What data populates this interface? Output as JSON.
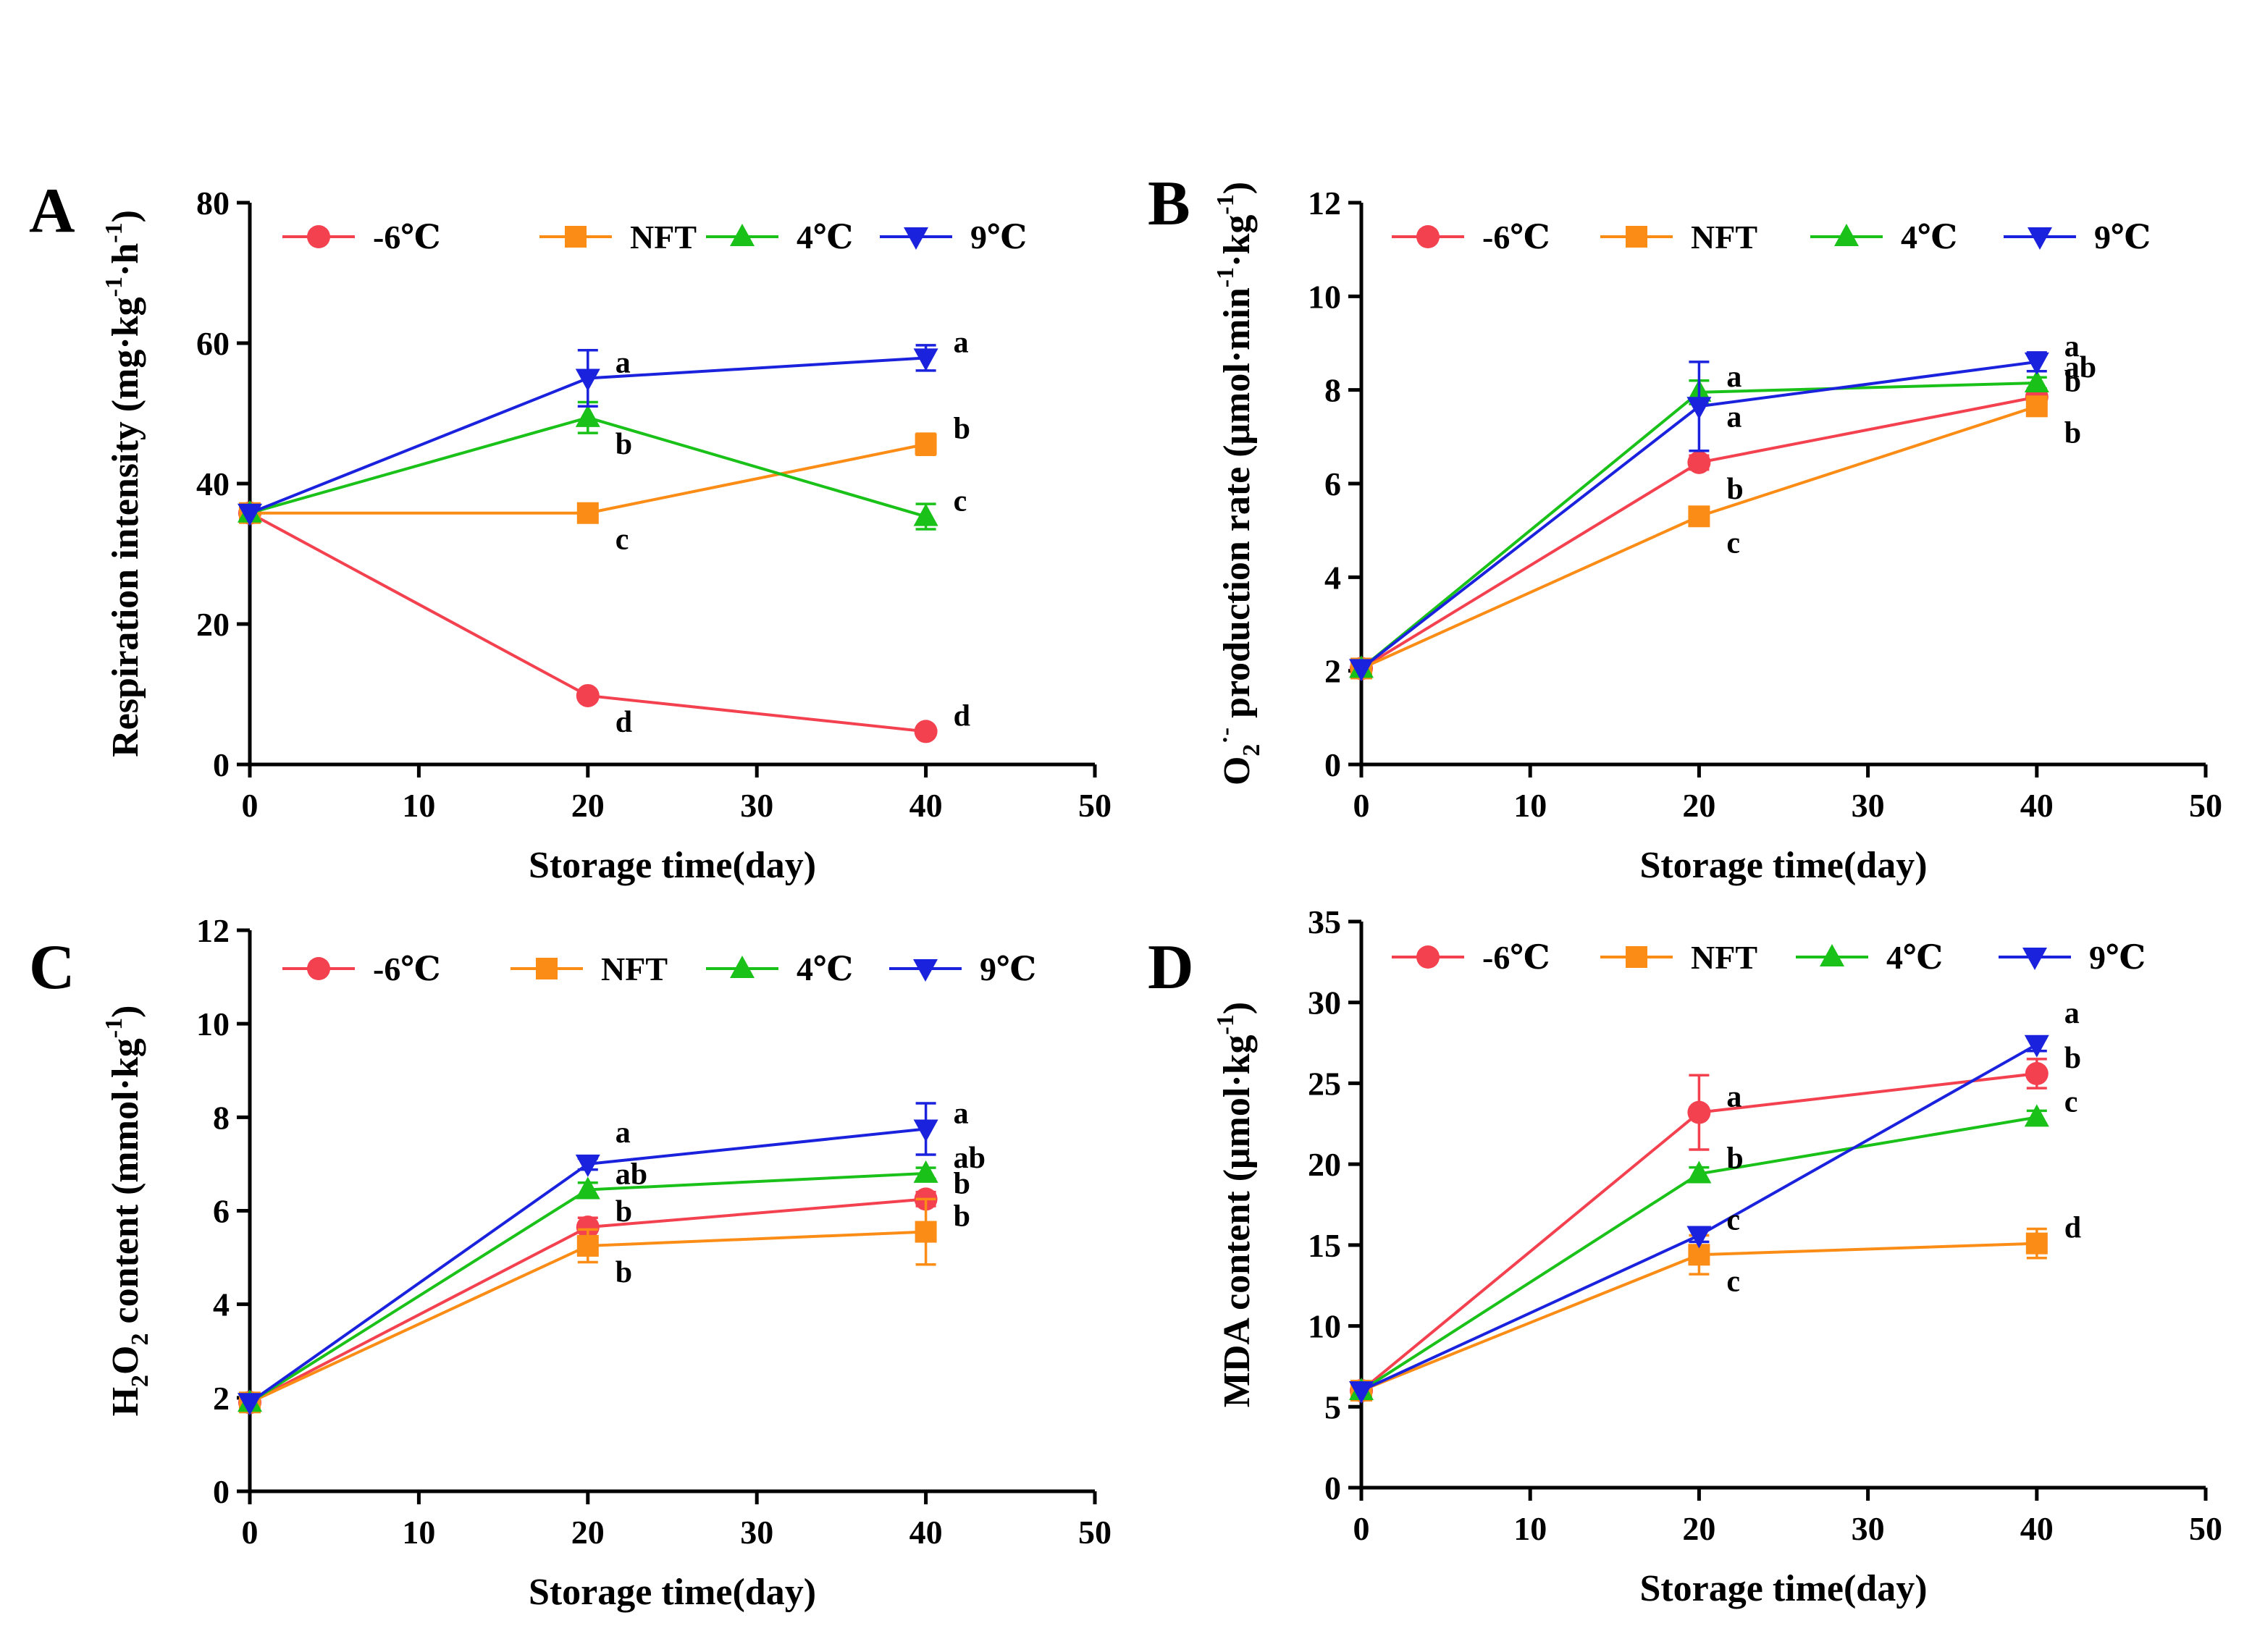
{
  "series_meta": [
    {
      "name": "-6℃",
      "color": "#f4414f",
      "marker": "circle"
    },
    {
      "name": "NFT",
      "color": "#fb8c16",
      "marker": "square"
    },
    {
      "name": "4℃",
      "color": "#19c119",
      "marker": "triangle-up"
    },
    {
      "name": "9℃",
      "color": "#1a22dd",
      "marker": "triangle-down"
    }
  ],
  "chart_data": [
    {
      "type": "line",
      "panel": "A",
      "xlabel": "Storage time(day)",
      "ylabel": "Respiration intensity (mg·kg⁻¹·h⁻¹)",
      "ylabel_parts": {
        "main": "Respiration intensity (mg·kg",
        "sup1": "-1",
        "mid": "·h",
        "sup2": "-1",
        "end": ")"
      },
      "xlim": [
        0,
        50
      ],
      "ylim": [
        0,
        80
      ],
      "xticks": [
        0,
        10,
        20,
        30,
        40,
        50
      ],
      "yticks": [
        0,
        20,
        40,
        60,
        80
      ],
      "x": [
        0,
        20,
        40
      ],
      "series": [
        {
          "name": "-6℃",
          "values": [
            35.8,
            9.8,
            4.7
          ],
          "errors": [
            0,
            0.5,
            0.5
          ],
          "labels": [
            "",
            "d",
            "d"
          ],
          "label_pos": [
            "",
            "below",
            "right"
          ]
        },
        {
          "name": "NFT",
          "values": [
            35.8,
            35.8,
            45.6
          ],
          "errors": [
            0,
            0.6,
            1.5
          ],
          "labels": [
            "",
            "c",
            "b"
          ],
          "label_pos": [
            "",
            "below",
            "right"
          ]
        },
        {
          "name": "4℃",
          "values": [
            35.8,
            49.4,
            35.3
          ],
          "errors": [
            0,
            2.2,
            1.8
          ],
          "labels": [
            "",
            "b",
            "c"
          ],
          "label_pos": [
            "",
            "below",
            "right"
          ]
        },
        {
          "name": "9℃",
          "values": [
            35.8,
            55.0,
            57.9
          ],
          "errors": [
            0,
            4.0,
            1.8
          ],
          "labels": [
            "",
            "a",
            "a"
          ],
          "label_pos": [
            "",
            "right",
            "right"
          ]
        }
      ]
    },
    {
      "type": "line",
      "panel": "B",
      "xlabel": "Storage time(day)",
      "ylabel": "O₂⁻ production rate (μmol·min⁻¹·kg⁻¹)",
      "ylabel_parts": {
        "main": "O",
        "sub": "2",
        "sup0": "·-",
        "mid": " production rate (μmol·min",
        "sup1": "-1",
        "mid2": "·kg",
        "sup2": "-1",
        "end": ")"
      },
      "xlim": [
        0,
        50
      ],
      "ylim": [
        0,
        12
      ],
      "xticks": [
        0,
        10,
        20,
        30,
        40,
        50
      ],
      "yticks": [
        0,
        2,
        4,
        6,
        8,
        10,
        12
      ],
      "x": [
        0,
        20,
        40
      ],
      "series": [
        {
          "name": "-6℃",
          "values": [
            2.05,
            6.45,
            7.85
          ],
          "errors": [
            0,
            0.15,
            0.15
          ],
          "labels": [
            "",
            "b",
            "b"
          ],
          "label_pos": [
            "",
            "below",
            "right"
          ]
        },
        {
          "name": "NFT",
          "values": [
            2.05,
            5.3,
            7.65
          ],
          "errors": [
            0,
            0.12,
            0.12
          ],
          "labels": [
            "",
            "c",
            "b"
          ],
          "label_pos": [
            "",
            "below",
            "right2"
          ]
        },
        {
          "name": "4℃",
          "values": [
            2.05,
            7.95,
            8.15
          ],
          "errors": [
            0,
            0.25,
            0.12
          ],
          "labels": [
            "",
            "a",
            "ab"
          ],
          "label_pos": [
            "",
            "right",
            "right"
          ]
        },
        {
          "name": "9℃",
          "values": [
            2.05,
            7.65,
            8.6
          ],
          "errors": [
            0,
            0.95,
            0.2
          ],
          "labels": [
            "",
            "a",
            "a"
          ],
          "label_pos": [
            "",
            "belowright",
            "right"
          ]
        }
      ]
    },
    {
      "type": "line",
      "panel": "C",
      "xlabel": "Storage time(day)",
      "ylabel": "H₂O₂ content (mmol·kg⁻¹)",
      "ylabel_parts": {
        "main": "H",
        "sub1": "2",
        "mid": "O",
        "sub2": "2",
        "mid2": "  content (mmol·kg",
        "sup1": "-1",
        "end": ")"
      },
      "xlim": [
        0,
        50
      ],
      "ylim": [
        0,
        12
      ],
      "xticks": [
        0,
        10,
        20,
        30,
        40,
        50
      ],
      "yticks": [
        0,
        2,
        4,
        6,
        8,
        10,
        12
      ],
      "x": [
        0,
        20,
        40
      ],
      "series": [
        {
          "name": "-6℃",
          "values": [
            1.9,
            5.65,
            6.25
          ],
          "errors": [
            0,
            0.2,
            0.15
          ],
          "labels": [
            "",
            "b",
            "b"
          ],
          "label_pos": [
            "",
            "right",
            "right"
          ]
        },
        {
          "name": "NFT",
          "values": [
            1.9,
            5.25,
            5.55
          ],
          "errors": [
            0,
            0.35,
            0.7
          ],
          "labels": [
            "",
            "b",
            "b"
          ],
          "label_pos": [
            "",
            "below",
            "right"
          ]
        },
        {
          "name": "4℃",
          "values": [
            1.9,
            6.45,
            6.8
          ],
          "errors": [
            0,
            0.15,
            0.12
          ],
          "labels": [
            "",
            "ab",
            "ab"
          ],
          "label_pos": [
            "",
            "right",
            "right"
          ]
        },
        {
          "name": "9℃",
          "values": [
            1.9,
            7.0,
            7.75
          ],
          "errors": [
            0,
            0.12,
            0.55
          ],
          "labels": [
            "",
            "a",
            "a"
          ],
          "label_pos": [
            "",
            "above",
            "right"
          ]
        }
      ]
    },
    {
      "type": "line",
      "panel": "D",
      "xlabel": "Storage time(day)",
      "ylabel": "MDA content (μmol·kg⁻¹)",
      "ylabel_parts": {
        "main": "MDA content (μmol·kg",
        "sup1": "-1",
        "end": ")"
      },
      "xlim": [
        0,
        50
      ],
      "ylim": [
        0,
        35
      ],
      "xticks": [
        0,
        10,
        20,
        30,
        40,
        50
      ],
      "yticks": [
        0,
        5,
        10,
        15,
        20,
        25,
        30,
        35
      ],
      "x": [
        0,
        20,
        40
      ],
      "series": [
        {
          "name": "-6℃",
          "values": [
            6.0,
            23.2,
            25.6
          ],
          "errors": [
            0,
            2.3,
            0.9
          ],
          "labels": [
            "",
            "a",
            "b"
          ],
          "label_pos": [
            "",
            "right",
            "right"
          ]
        },
        {
          "name": "NFT",
          "values": [
            6.0,
            14.4,
            15.1
          ],
          "errors": [
            0,
            1.2,
            0.9
          ],
          "labels": [
            "",
            "c",
            "d"
          ],
          "label_pos": [
            "",
            "below",
            "right"
          ]
        },
        {
          "name": "4℃",
          "values": [
            6.0,
            19.4,
            22.9
          ],
          "errors": [
            0,
            0.4,
            0.4
          ],
          "labels": [
            "",
            "b",
            "c"
          ],
          "label_pos": [
            "",
            "right",
            "right"
          ]
        },
        {
          "name": "9℃",
          "values": [
            6.0,
            15.6,
            27.4
          ],
          "errors": [
            0,
            0.4,
            0.4
          ],
          "labels": [
            "",
            "c",
            "a"
          ],
          "label_pos": [
            "",
            "right",
            "above"
          ]
        }
      ]
    }
  ]
}
